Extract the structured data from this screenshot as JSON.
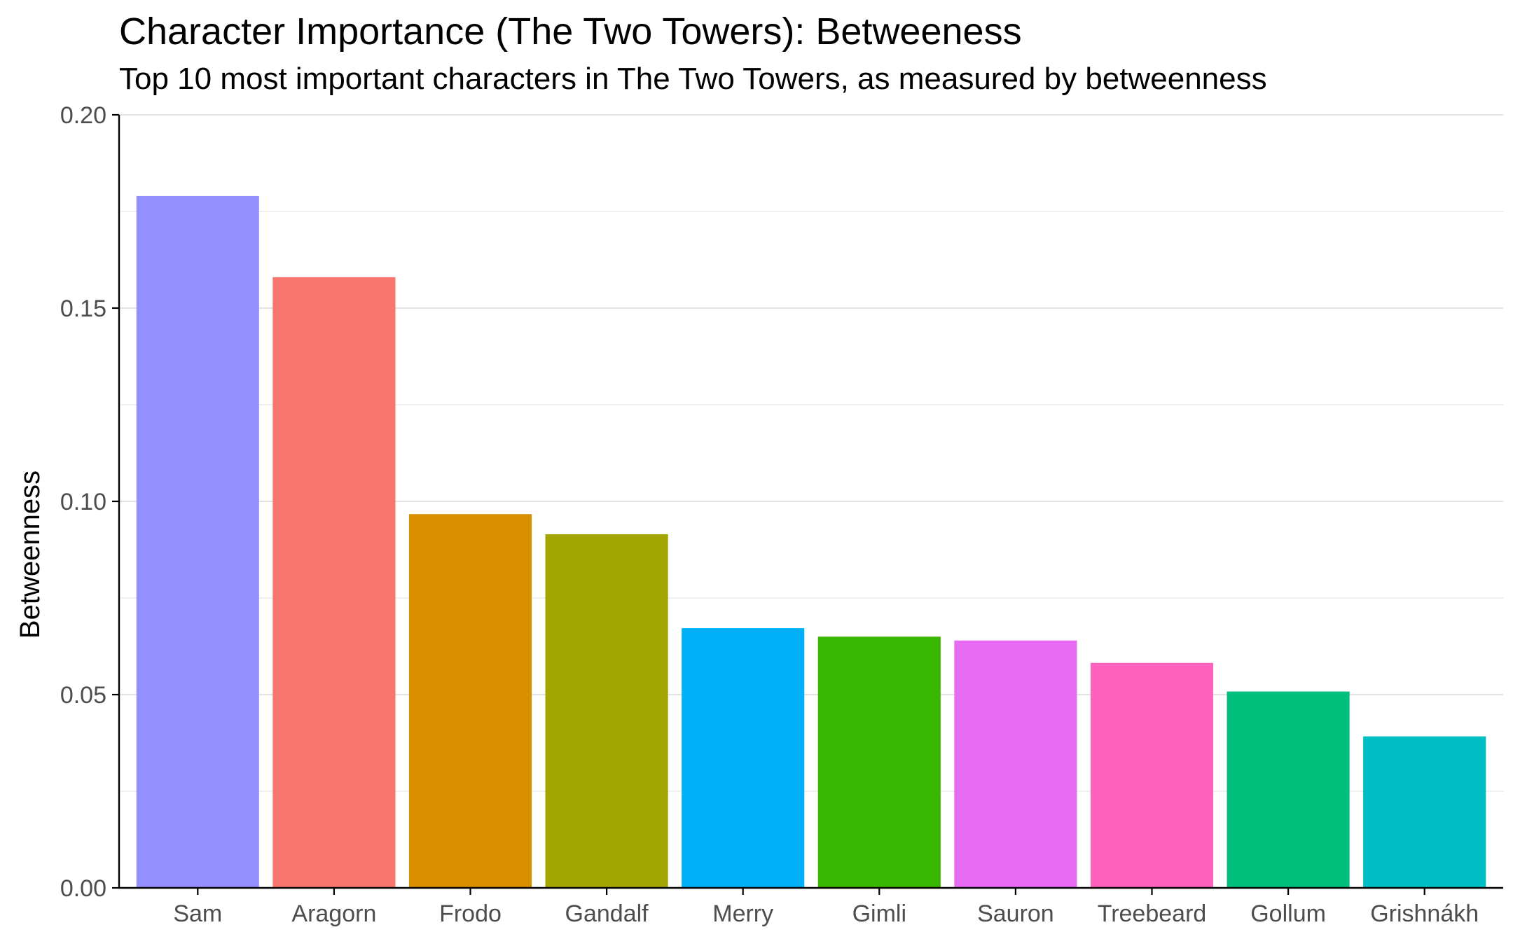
{
  "chart_data": {
    "type": "bar",
    "title": "Character Importance (The Two Towers): Betweeness",
    "subtitle": "Top 10 most important characters in The Two Towers, as measured by betweenness",
    "xlabel": "",
    "ylabel": "Betweenness",
    "ylim": [
      0,
      0.2
    ],
    "yticks": [
      "0.00",
      "0.05",
      "0.10",
      "0.15",
      "0.20"
    ],
    "grid": true,
    "legend": "none",
    "categories": [
      "Sam",
      "Aragorn",
      "Frodo",
      "Gandalf",
      "Merry",
      "Gimli",
      "Sauron",
      "Treebeard",
      "Gollum",
      "Grishnákh"
    ],
    "values": [
      0.179,
      0.158,
      0.0967,
      0.0915,
      0.0672,
      0.065,
      0.064,
      0.0582,
      0.0508,
      0.0392
    ],
    "colors": [
      "#9590FF",
      "#F8766D",
      "#D89000",
      "#A3A500",
      "#00B0F6",
      "#39B600",
      "#E76BF3",
      "#FF62BC",
      "#00BF7D",
      "#00BFC4"
    ]
  }
}
